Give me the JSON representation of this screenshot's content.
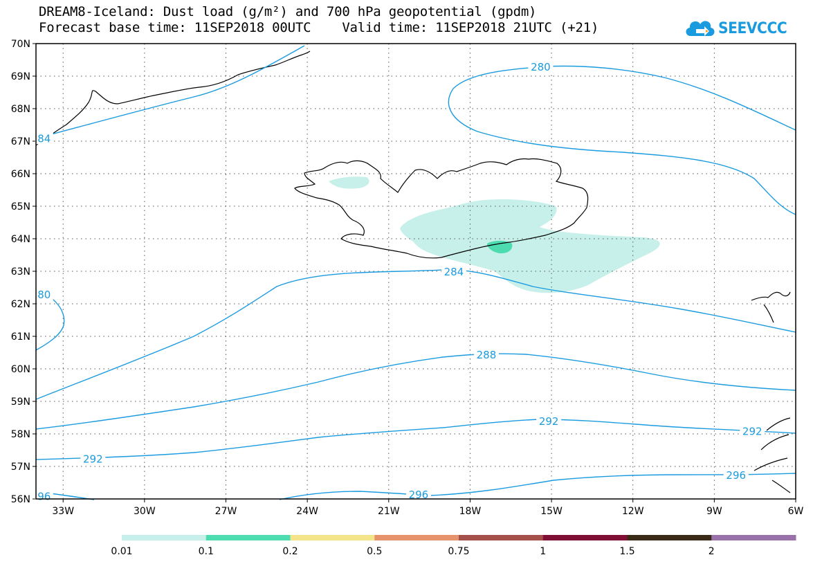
{
  "title": {
    "line1": "DREAM8-Iceland: Dust load (g/m²) and 700 hPa geopotential (gpdm)",
    "line2": "Forecast base time: 11SEP2018 00UTC    Valid time: 11SEP2018 21UTC (+21)"
  },
  "logo": {
    "text": "SEEVCCC",
    "icon": "cloud-icon",
    "color": "#1a9be0"
  },
  "map": {
    "projection": "lat-lon",
    "lon_range": [
      -34,
      -6
    ],
    "lat_range": [
      56,
      70
    ],
    "grid": true,
    "lat_labels": [
      "70N",
      "69N",
      "68N",
      "67N",
      "66N",
      "65N",
      "64N",
      "63N",
      "62N",
      "61N",
      "60N",
      "59N",
      "58N",
      "57N",
      "56N"
    ],
    "lon_labels": [
      "33W",
      "30W",
      "27W",
      "24W",
      "21W",
      "18W",
      "15W",
      "12W",
      "9W",
      "6W"
    ],
    "contour_color": "#1a9be0",
    "contour_labels": [
      {
        "text": "280",
        "lon": -15.4,
        "lat": 69.3
      },
      {
        "text": "284",
        "lon": -18.6,
        "lat": 63.0
      },
      {
        "text": "288",
        "lon": -17.4,
        "lat": 60.45
      },
      {
        "text": "292",
        "lon": -15.1,
        "lat": 58.4
      },
      {
        "text": "292",
        "lon": -31.9,
        "lat": 57.25
      },
      {
        "text": "292",
        "lon": -7.6,
        "lat": 58.1
      },
      {
        "text": "296",
        "lon": -19.9,
        "lat": 56.15
      },
      {
        "text": "296",
        "lon": -8.2,
        "lat": 56.75
      },
      {
        "text": "96",
        "lon": -33.7,
        "lat": 56.1
      },
      {
        "text": "80",
        "lon": -33.7,
        "lat": 62.3
      },
      {
        "text": "84",
        "lon": -33.7,
        "lat": 67.1
      }
    ]
  },
  "legend": {
    "labels": [
      "0.01",
      "0.1",
      "0.2",
      "0.5",
      "0.75",
      "1",
      "1.5",
      "2"
    ],
    "colors": [
      "#c7f0ea",
      "#4ddbb0",
      "#f5e58a",
      "#e6936b",
      "#a5504a",
      "#7f0f35",
      "#3a2a18",
      "#9872a8"
    ]
  }
}
